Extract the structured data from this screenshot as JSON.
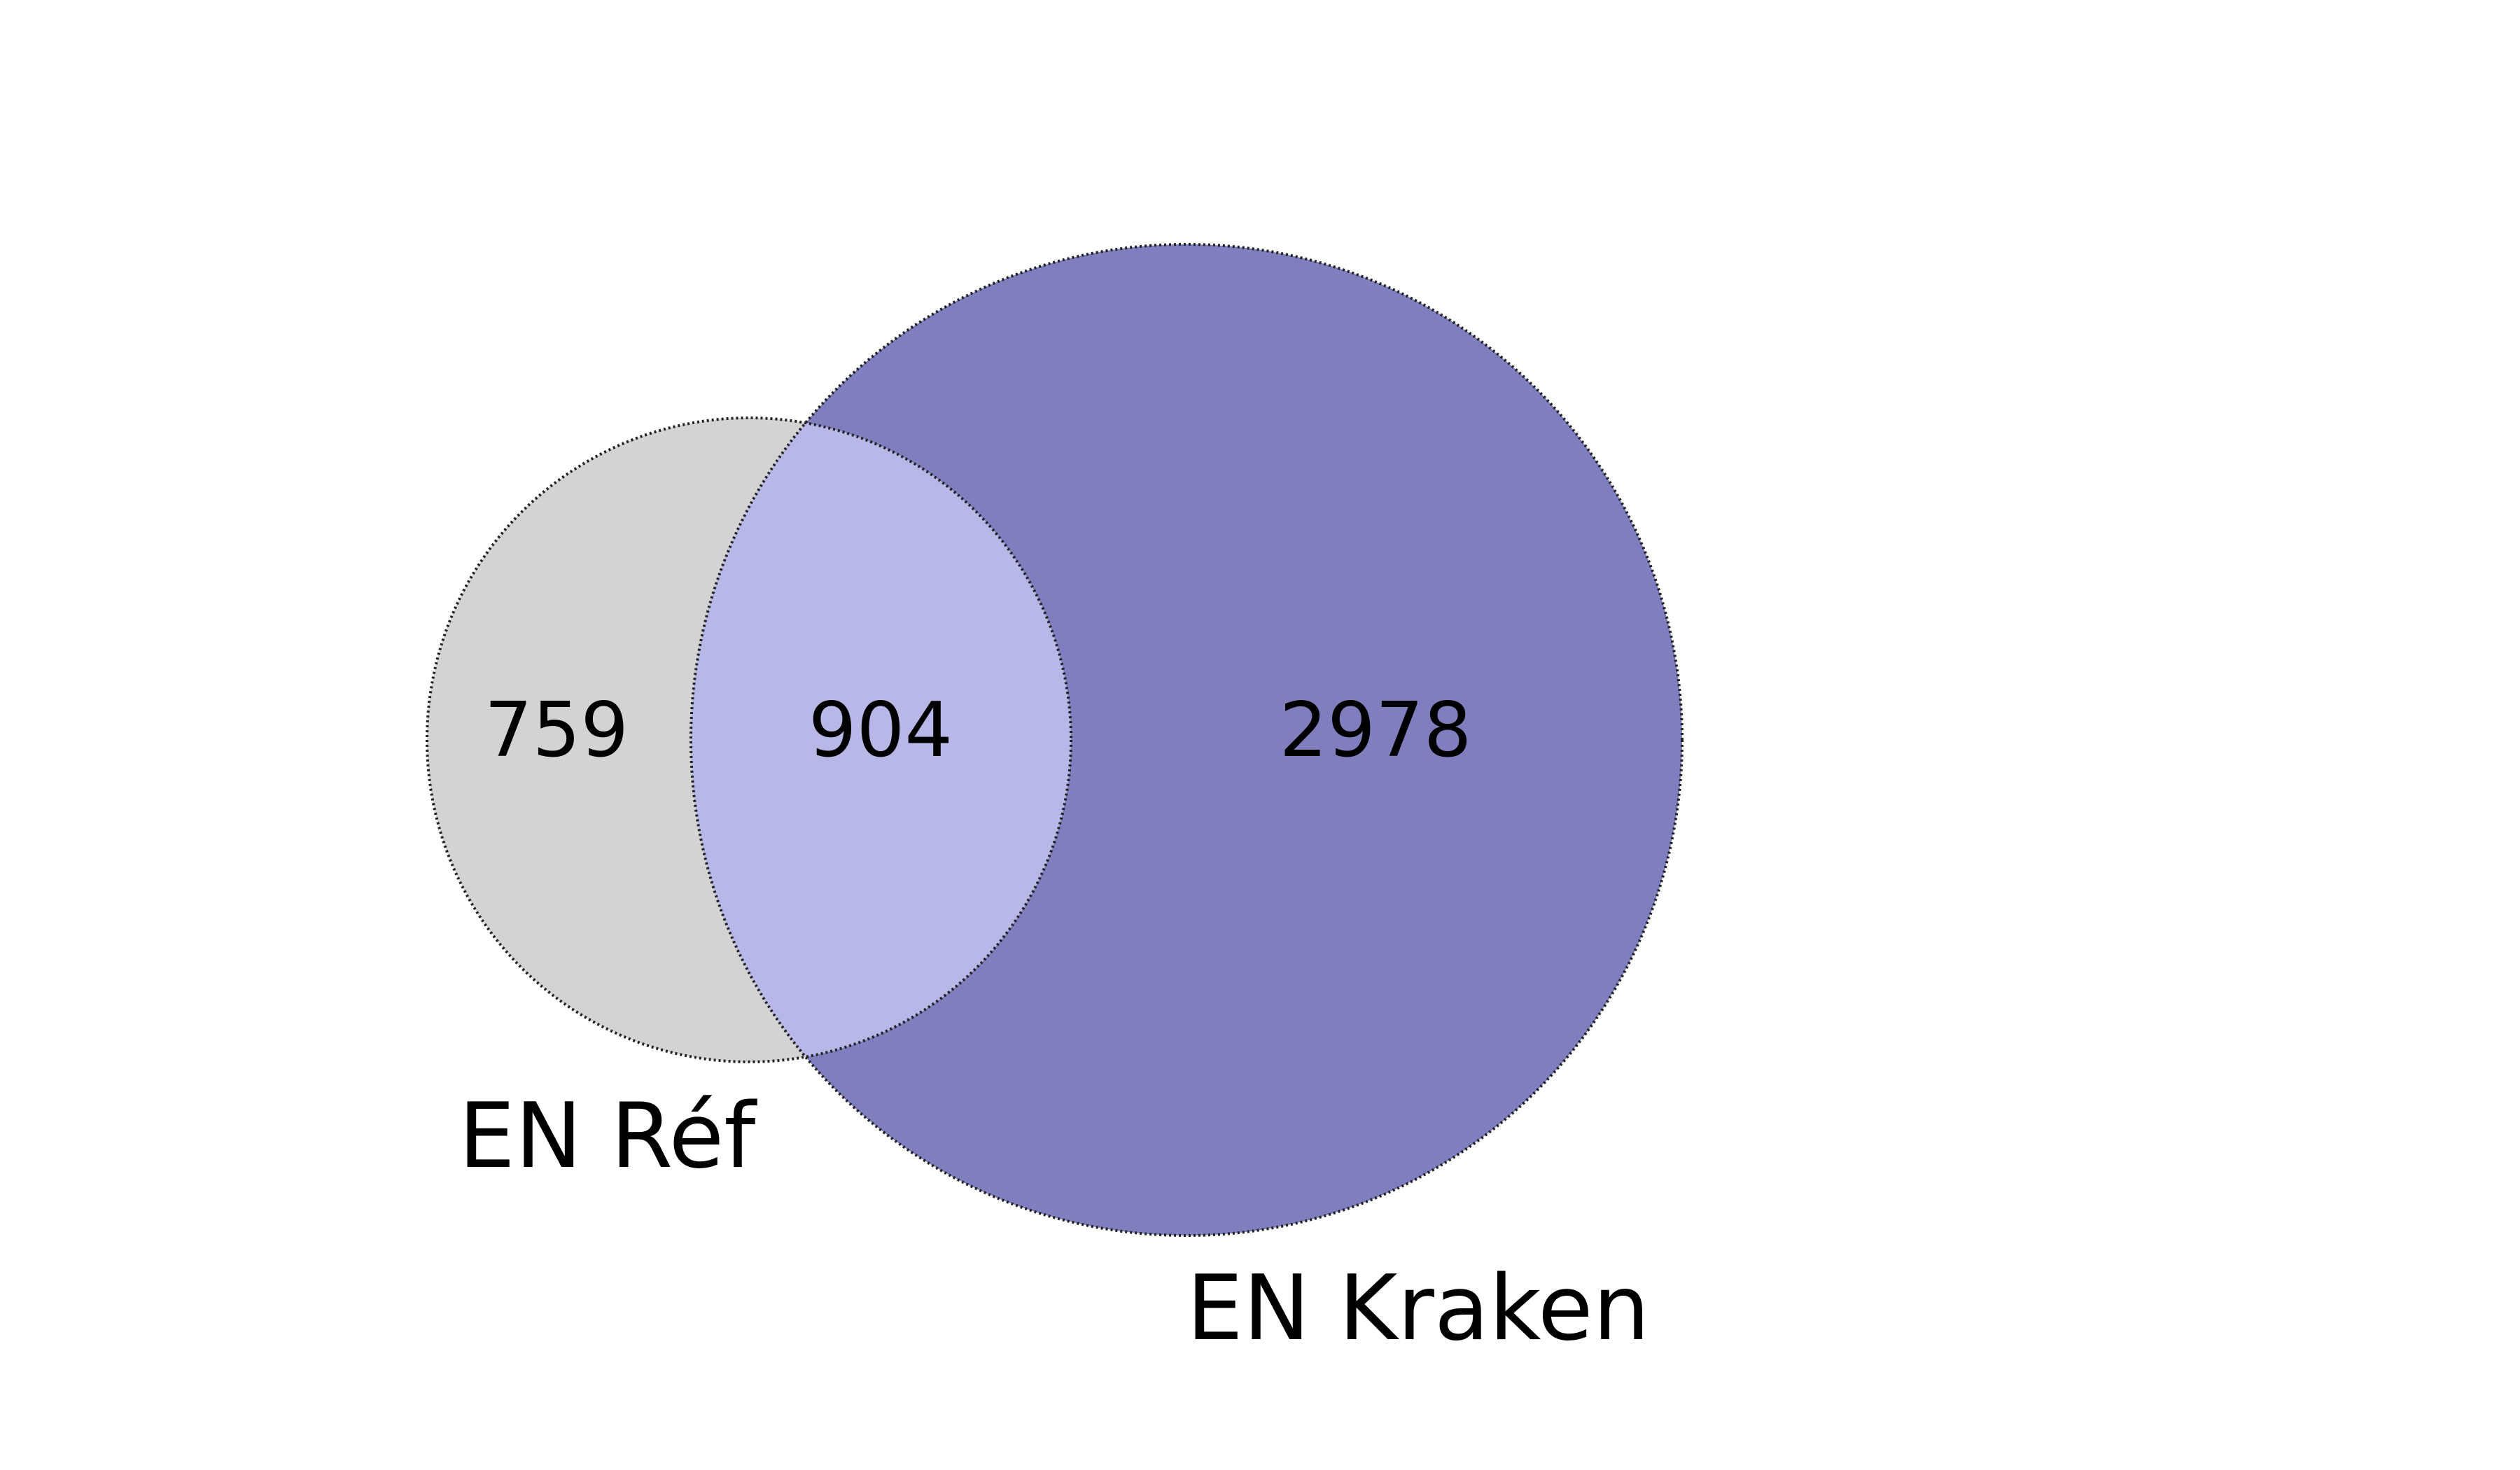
{
  "sets": [
    {
      "id": "ref",
      "label": "EN Réf",
      "color": "#d3d3d3"
    },
    {
      "id": "kraken",
      "label": "EN Kraken",
      "color": "#7f7fbf"
    }
  ],
  "regions": {
    "ref_only": {
      "value": "759"
    },
    "both": {
      "value": "904",
      "color": "#b8b8e8"
    },
    "kraken_only": {
      "value": "2978"
    }
  }
}
